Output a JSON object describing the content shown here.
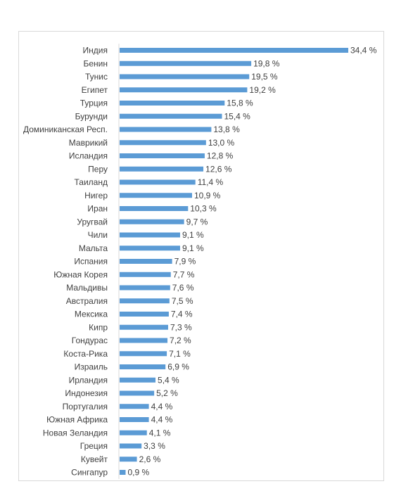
{
  "chart_data": {
    "type": "bar",
    "orientation": "horizontal",
    "categories": [
      "Индия",
      "Бенин",
      "Тунис",
      "Египет",
      "Турция",
      "Бурунди",
      "Доминиканская Респ.",
      "Маврикий",
      "Исландия",
      "Перу",
      "Таиланд",
      "Нигер",
      "Иран",
      "Уругвай",
      "Чили",
      "Мальта",
      "Испания",
      "Южная Корея",
      "Мальдивы",
      "Австралия",
      "Мексика",
      "Кипр",
      "Гондурас",
      "Коста-Рика",
      "Израиль",
      "Ирландия",
      "Индонезия",
      "Португалия",
      "Южная Африка",
      "Новая Зеландия",
      "Греция",
      "Кувейт",
      "Сингапур"
    ],
    "values": [
      34.4,
      19.8,
      19.5,
      19.2,
      15.8,
      15.4,
      13.8,
      13.0,
      12.8,
      12.6,
      11.4,
      10.9,
      10.3,
      9.7,
      9.1,
      9.1,
      7.9,
      7.7,
      7.6,
      7.5,
      7.4,
      7.3,
      7.2,
      7.1,
      6.9,
      5.4,
      5.2,
      4.4,
      4.4,
      4.1,
      3.3,
      2.6,
      0.9
    ],
    "value_labels": [
      "34,4 %",
      "19,8 %",
      "19,5 %",
      "19,2 %",
      "15,8 %",
      "15,4 %",
      "13,8 %",
      "13,0 %",
      "12,8 %",
      "12,6 %",
      "11,4 %",
      "10,9 %",
      "10,3 %",
      "9,7 %",
      "9,1 %",
      "9,1 %",
      "7,9 %",
      "7,7 %",
      "7,6 %",
      "7,5 %",
      "7,4 %",
      "7,3 %",
      "7,2 %",
      "7,1 %",
      "6,9 %",
      "5,4 %",
      "5,2 %",
      "4,4 %",
      "4,4 %",
      "4,1 %",
      "3,3 %",
      "2,6 %",
      "0,9 %"
    ],
    "xlim": [
      0,
      34.4
    ],
    "unit": "%",
    "grid": false,
    "bar_color": "#5b9bd5",
    "title": "",
    "xlabel": "",
    "ylabel": ""
  }
}
